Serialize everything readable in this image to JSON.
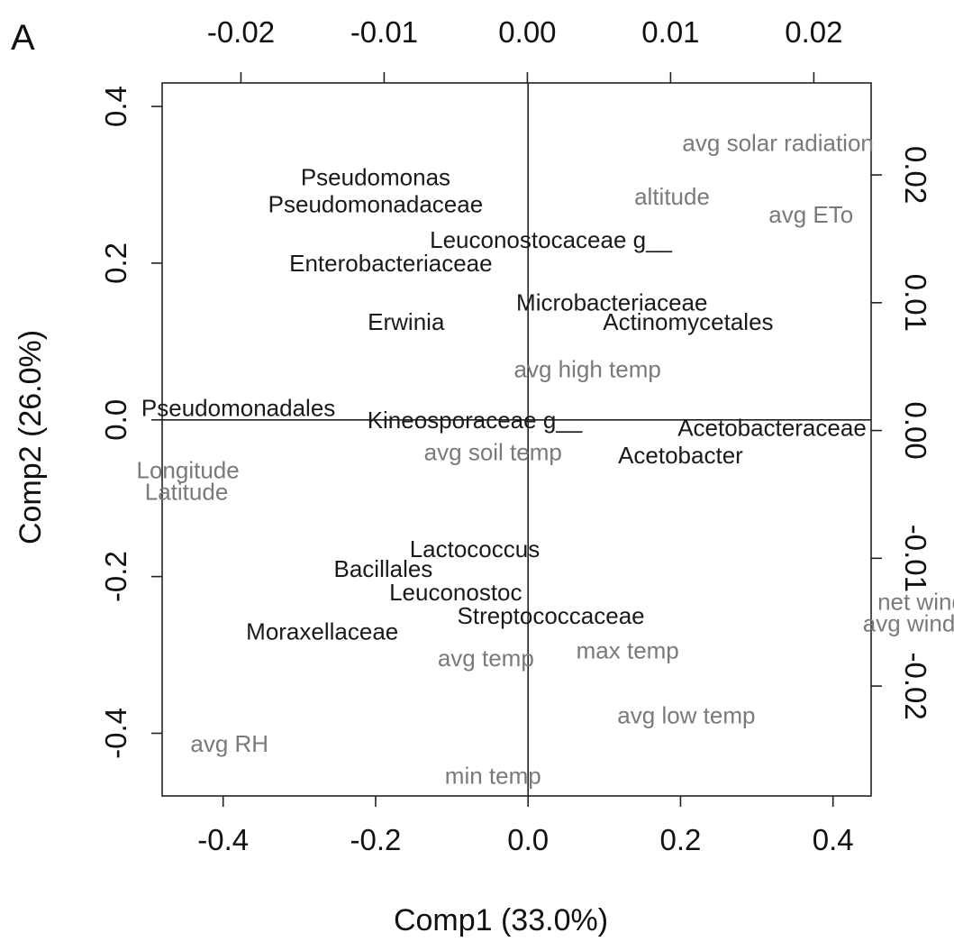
{
  "chart_data": {
    "type": "scatter",
    "panel_label": "A",
    "xlabel": "Comp1 (33.0%)",
    "ylabel": "Comp2 (26.0%)",
    "xlim": [
      -0.48,
      0.45
    ],
    "ylim": [
      -0.48,
      0.43
    ],
    "x_ticks": [
      "-0.4",
      "-0.2",
      "0.0",
      "0.2",
      "0.4"
    ],
    "y_ticks": [
      "-0.4",
      "-0.2",
      "0.0",
      "0.2",
      "0.4"
    ],
    "secondary_x_ticks": [
      "-0.02",
      "-0.01",
      "0.00",
      "0.01",
      "0.02"
    ],
    "secondary_y_ticks": [
      "-0.02",
      "-0.01",
      "0.00",
      "0.01",
      "0.02"
    ],
    "secondary_xlim": [
      -0.0255,
      0.024
    ],
    "secondary_ylim": [
      -0.0286,
      0.0272
    ],
    "reference_lines": {
      "x": 0,
      "y": 0
    },
    "grid": false,
    "legend": "none",
    "colors": {
      "species": "#1a1a1a",
      "environment": "#7a7a7a",
      "axes": "#222222"
    },
    "species": [
      {
        "label": "Pseudomonas",
        "x": -0.2,
        "y": 0.31
      },
      {
        "label": "Pseudomonadaceae",
        "x": -0.2,
        "y": 0.275
      },
      {
        "label": "Leuconostocaceae g__",
        "x": 0.03,
        "y": 0.23
      },
      {
        "label": "Enterobacteriaceae",
        "x": -0.18,
        "y": 0.2
      },
      {
        "label": "Microbacteriaceae",
        "x": 0.11,
        "y": 0.15
      },
      {
        "label": "Erwinia",
        "x": -0.16,
        "y": 0.125
      },
      {
        "label": "Actinomycetales",
        "x": 0.21,
        "y": 0.125
      },
      {
        "label": "Pseudomonadales",
        "x": -0.38,
        "y": 0.015
      },
      {
        "label": "Kineosporaceae g__",
        "x": -0.07,
        "y": 0.0
      },
      {
        "label": "Acetobacteraceae",
        "x": 0.32,
        "y": -0.01
      },
      {
        "label": "Acetobacter",
        "x": 0.2,
        "y": -0.045
      },
      {
        "label": "Lactococcus",
        "x": -0.07,
        "y": -0.165
      },
      {
        "label": "Bacillales",
        "x": -0.19,
        "y": -0.19
      },
      {
        "label": "Leuconostoc",
        "x": -0.095,
        "y": -0.22
      },
      {
        "label": "Streptococcaceae",
        "x": 0.03,
        "y": -0.25
      },
      {
        "label": "Moraxellaceae",
        "x": -0.27,
        "y": -0.27
      }
    ],
    "environment": [
      {
        "label": "avg solar radiation",
        "x": 0.0175,
        "y": 0.0225
      },
      {
        "label": "altitude",
        "x": 0.0101,
        "y": 0.0183
      },
      {
        "label": "avg ETo",
        "x": 0.0198,
        "y": 0.0169
      },
      {
        "label": "avg high temp",
        "x": 0.0042,
        "y": 0.0048
      },
      {
        "label": "avg soil temp",
        "x": -0.0024,
        "y": -0.0017
      },
      {
        "label": "Longitude",
        "x": -0.0237,
        "y": -0.0031
      },
      {
        "label": "Latitude",
        "x": -0.0238,
        "y": -0.0048
      },
      {
        "label": "net wind run",
        "x": 0.0289,
        "y": -0.0134
      },
      {
        "label": "avg wind speed",
        "x": 0.0291,
        "y": -0.0151
      },
      {
        "label": "avg temp",
        "x": -0.0029,
        "y": -0.0178
      },
      {
        "label": "max temp",
        "x": 0.007,
        "y": -0.0172
      },
      {
        "label": "avg low temp",
        "x": 0.0111,
        "y": -0.0223
      },
      {
        "label": "avg RH",
        "x": -0.0208,
        "y": -0.0245
      },
      {
        "label": "min temp",
        "x": -0.0024,
        "y": -0.027
      }
    ]
  }
}
